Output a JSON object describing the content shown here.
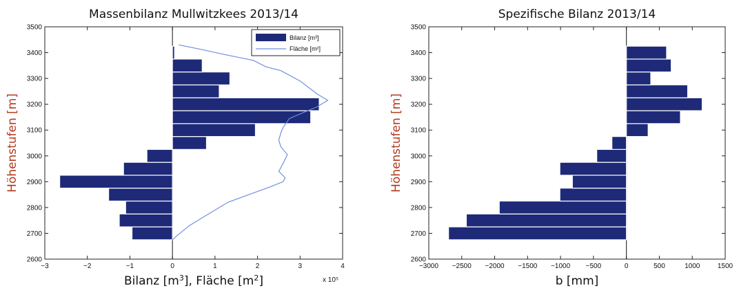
{
  "chart_data": [
    {
      "type": "bar",
      "orientation": "horizontal",
      "title": "Massenbilanz Mullwitzkees 2013/14",
      "xlabel": "Bilanz [m³], Fläche [m²]",
      "ylabel": "Höhenstufen [m]",
      "x_multiplier_label": "x 10⁵",
      "xlim": [
        -3,
        4
      ],
      "ylim": [
        2600,
        3500
      ],
      "xticks": [
        -3,
        -2,
        -1,
        0,
        1,
        2,
        3,
        4
      ],
      "yticks": [
        2600,
        2700,
        2800,
        2900,
        3000,
        3100,
        3200,
        3300,
        3400,
        3500
      ],
      "legend_position": "top-right",
      "legend": [
        "Bilanz [m³]",
        "Fläche [m²]"
      ],
      "bar_band_height": 50,
      "series": [
        {
          "name": "Bilanz [m³]",
          "kind": "bar",
          "color": "#1e2a78",
          "y": [
            2700,
            2750,
            2800,
            2850,
            2900,
            2950,
            3000,
            3050,
            3100,
            3150,
            3200,
            3250,
            3300,
            3350,
            3400
          ],
          "values": [
            -0.95,
            -1.25,
            -1.1,
            -1.5,
            -2.65,
            -1.15,
            -0.6,
            0.8,
            1.95,
            3.25,
            3.45,
            1.1,
            1.35,
            0.7,
            0.05
          ]
        },
        {
          "name": "Fläche [m²]",
          "kind": "line",
          "color": "#6f8fe0",
          "x": [
            0.0,
            0.1,
            0.25,
            0.4,
            0.7,
            1.0,
            1.3,
            1.8,
            2.3,
            2.6,
            2.65,
            2.5,
            2.6,
            2.7,
            2.55,
            2.5,
            2.55,
            2.6,
            2.75,
            3.4,
            3.65,
            3.4,
            3.0,
            2.55,
            2.2,
            1.9,
            1.3,
            0.6,
            0.15
          ],
          "y": [
            2675,
            2690,
            2710,
            2730,
            2760,
            2790,
            2820,
            2850,
            2880,
            2900,
            2915,
            2940,
            2970,
            3005,
            3035,
            3060,
            3090,
            3110,
            3145,
            3190,
            3215,
            3240,
            3290,
            3330,
            3345,
            3370,
            3390,
            3415,
            3430
          ]
        }
      ]
    },
    {
      "type": "bar",
      "orientation": "horizontal",
      "title": "Spezifische Bilanz 2013/14",
      "xlabel": "b [mm]",
      "ylabel": "Höhenstufen [m]",
      "xlim": [
        -3000,
        1500
      ],
      "ylim": [
        2600,
        3500
      ],
      "xticks": [
        -3000,
        -2500,
        -2000,
        -1500,
        -1000,
        -500,
        0,
        500,
        1000,
        1500
      ],
      "yticks": [
        2600,
        2700,
        2800,
        2900,
        3000,
        3100,
        3200,
        3300,
        3400,
        3500
      ],
      "bar_band_height": 50,
      "series": [
        {
          "name": "b [mm]",
          "kind": "bar",
          "color": "#1e2a78",
          "y": [
            2700,
            2750,
            2800,
            2850,
            2900,
            2950,
            3000,
            3050,
            3100,
            3150,
            3200,
            3250,
            3300,
            3350,
            3400
          ],
          "values": [
            -2700,
            -2430,
            -1930,
            -1010,
            -820,
            -1010,
            -450,
            -220,
            330,
            820,
            1150,
            930,
            370,
            680,
            610
          ]
        }
      ]
    }
  ]
}
